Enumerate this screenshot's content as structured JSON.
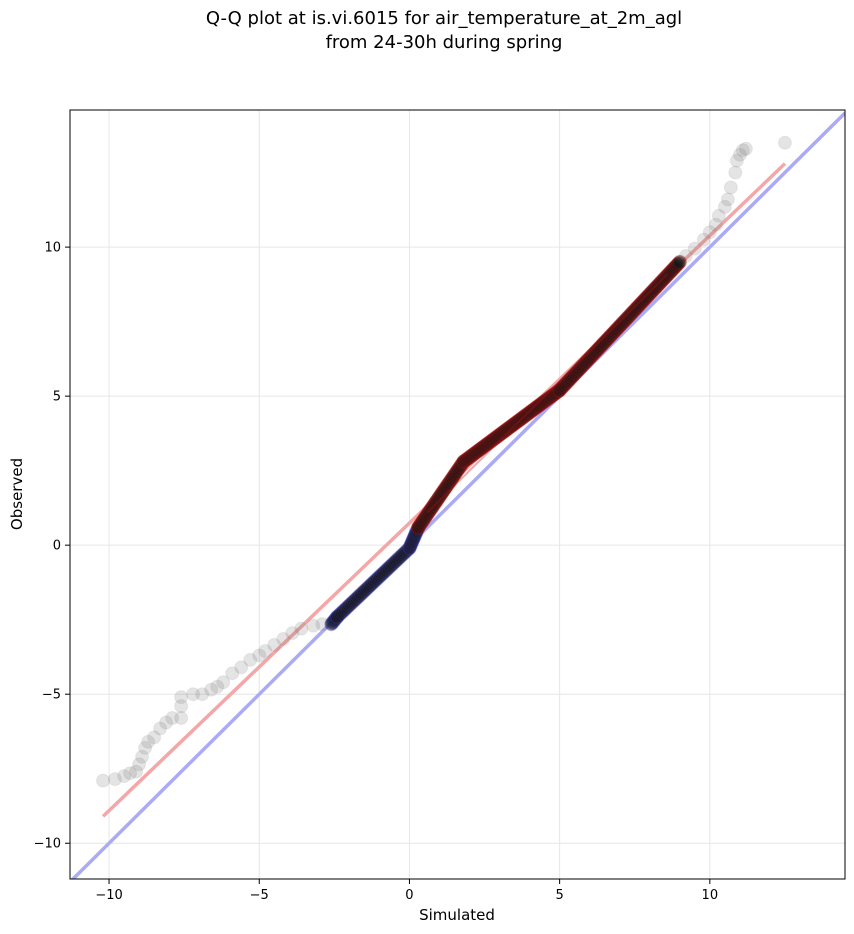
{
  "chart_data": {
    "type": "scatter",
    "title_lines": [
      "Q-Q plot at is.vi.6015 for air_temperature_at_2m_agl",
      "from 24-30h during spring"
    ],
    "xlabel": "Simulated",
    "ylabel": "Observed",
    "xlim": [
      -11.3,
      14.5
    ],
    "ylim": [
      -11.2,
      14.6
    ],
    "grid": true,
    "xticks": [
      -10,
      -5,
      0,
      5,
      10
    ],
    "yticks": [
      -10,
      -5,
      0,
      5,
      10
    ],
    "xtick_labels": [
      "−10",
      "−5",
      "0",
      "5",
      "10"
    ],
    "ytick_labels": [
      "−10",
      "−5",
      "0",
      "5",
      "10"
    ],
    "reference_line": {
      "x": [
        -11.3,
        14.5
      ],
      "y": [
        -11.3,
        14.5
      ],
      "color": "#aaaaf6"
    },
    "fit_line": {
      "x": [
        -10.2,
        12.5
      ],
      "y": [
        -9.1,
        12.8
      ],
      "color": "#f5a6a6"
    },
    "tail_points": [
      [
        -10.2,
        -7.9
      ],
      [
        -9.8,
        -7.85
      ],
      [
        -9.5,
        -7.75
      ],
      [
        -9.3,
        -7.65
      ],
      [
        -9.1,
        -7.6
      ],
      [
        -9.0,
        -7.35
      ],
      [
        -8.9,
        -7.1
      ],
      [
        -8.8,
        -6.8
      ],
      [
        -8.7,
        -6.6
      ],
      [
        -8.5,
        -6.45
      ],
      [
        -8.3,
        -6.15
      ],
      [
        -8.1,
        -5.95
      ],
      [
        -7.9,
        -5.8
      ],
      [
        -7.6,
        -5.8
      ],
      [
        -7.6,
        -5.4
      ],
      [
        -7.6,
        -5.1
      ],
      [
        -7.2,
        -5.0
      ],
      [
        -6.9,
        -5.0
      ],
      [
        -6.6,
        -4.85
      ],
      [
        -6.4,
        -4.75
      ],
      [
        -6.2,
        -4.6
      ],
      [
        -5.9,
        -4.3
      ],
      [
        -5.6,
        -4.1
      ],
      [
        -5.3,
        -3.85
      ],
      [
        -5.0,
        -3.7
      ],
      [
        -4.8,
        -3.55
      ],
      [
        -4.5,
        -3.35
      ],
      [
        -4.2,
        -3.15
      ],
      [
        -3.9,
        -2.95
      ],
      [
        -3.6,
        -2.8
      ],
      [
        -3.2,
        -2.7
      ],
      [
        -2.9,
        -2.65
      ],
      [
        9.2,
        9.7
      ],
      [
        9.5,
        9.95
      ],
      [
        9.8,
        10.25
      ],
      [
        10.0,
        10.5
      ],
      [
        10.2,
        10.75
      ],
      [
        10.3,
        11.05
      ],
      [
        10.5,
        11.35
      ],
      [
        10.6,
        11.6
      ],
      [
        10.7,
        12.0
      ],
      [
        10.85,
        12.5
      ],
      [
        10.9,
        12.9
      ],
      [
        11.0,
        13.1
      ],
      [
        11.1,
        13.25
      ],
      [
        11.2,
        13.3
      ],
      [
        12.5,
        13.5
      ]
    ],
    "body_segments": [
      {
        "x0": -2.6,
        "y0": -2.65,
        "x1": -2.4,
        "y1": -2.4,
        "n": 8
      },
      {
        "x0": -2.4,
        "y0": -2.4,
        "x1": 0.0,
        "y1": -0.1,
        "n": 50
      },
      {
        "x0": 0.0,
        "y0": -0.1,
        "x1": 0.3,
        "y1": 0.6,
        "n": 18
      },
      {
        "x0": 0.3,
        "y0": 0.6,
        "x1": 1.8,
        "y1": 2.8,
        "n": 45
      },
      {
        "x0": 1.8,
        "y0": 2.8,
        "x1": 5.0,
        "y1": 5.2,
        "n": 90
      },
      {
        "x0": 5.0,
        "y0": 5.2,
        "x1": 9.0,
        "y1": 9.5,
        "n": 100
      }
    ],
    "point_colors": {
      "light": "rgba(120,120,120,0.20)",
      "dark": "rgba(20,20,20,0.45)",
      "blue_edge": "rgba(70,70,220,0.25)",
      "red_core": "rgba(190,20,20,0.35)"
    }
  }
}
